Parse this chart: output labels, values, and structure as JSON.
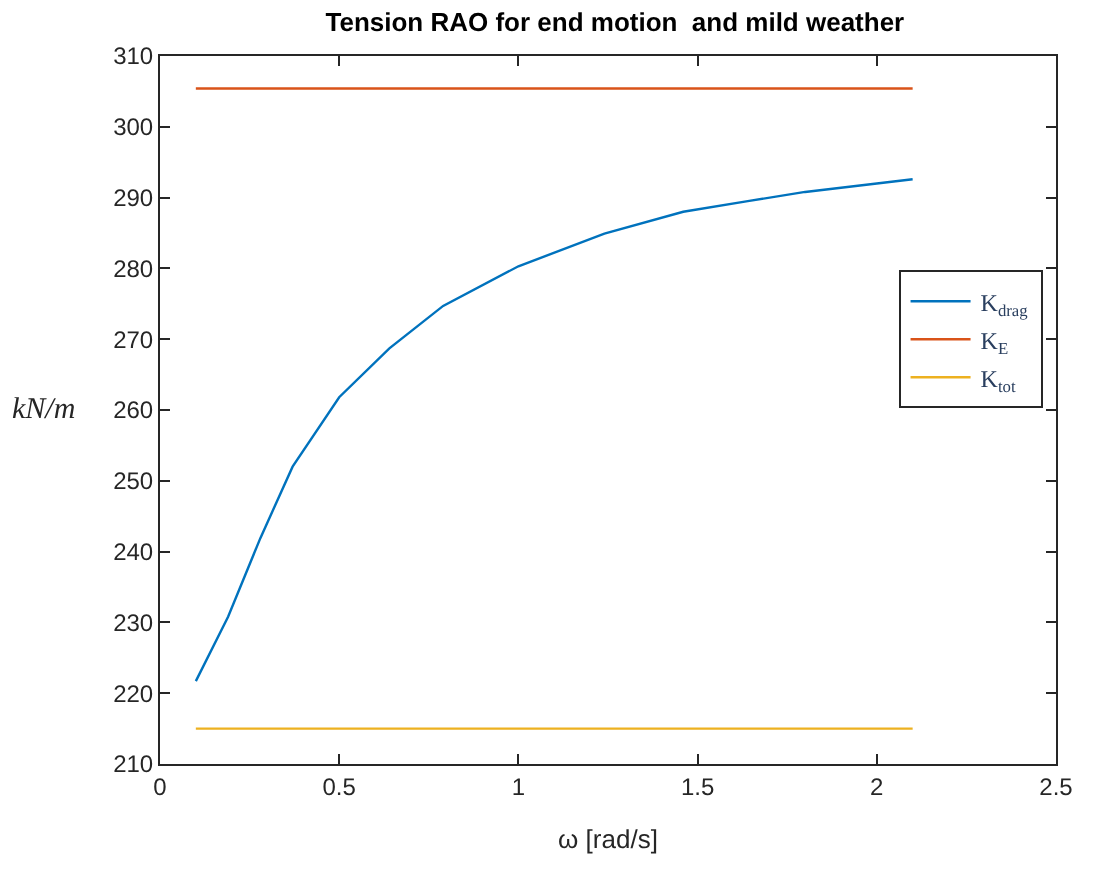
{
  "chart_data": {
    "type": "line",
    "title": "Tension RAO for end motion  and mild weather",
    "xlabel": "ω [rad/s]",
    "ylabel": "kN/m",
    "series": [
      {
        "name": "K$_{drag}$",
        "color": "#0072bd",
        "x": [
          0.1,
          0.19,
          0.28,
          0.37,
          0.5,
          0.64,
          0.79,
          1.0,
          1.24,
          1.46,
          1.64,
          1.8,
          2.0,
          2.1
        ],
        "values": [
          221.7,
          230.8,
          241.9,
          252.0,
          261.8,
          268.7,
          274.7,
          280.3,
          284.9,
          288.0,
          289.5,
          290.8,
          292.0,
          292.6
        ]
      },
      {
        "name": "K$_{E}$",
        "color": "#d95319",
        "x": [
          0.1,
          2.1
        ],
        "values": [
          305.4,
          305.4
        ]
      },
      {
        "name": "K$_{tot}$",
        "color": "#edb120",
        "x": [
          0.1,
          2.1
        ],
        "values": [
          215.0,
          215.0
        ]
      }
    ],
    "xlim": [
      0,
      2.5
    ],
    "xticks": [
      0,
      0.5,
      1,
      1.5,
      2,
      2.5
    ],
    "ylim": [
      210,
      310
    ],
    "yticks": [
      210,
      220,
      230,
      240,
      250,
      260,
      270,
      280,
      290,
      300,
      310
    ],
    "legend": "right",
    "grid": false,
    "marker": "none",
    "line_style": "solid"
  }
}
